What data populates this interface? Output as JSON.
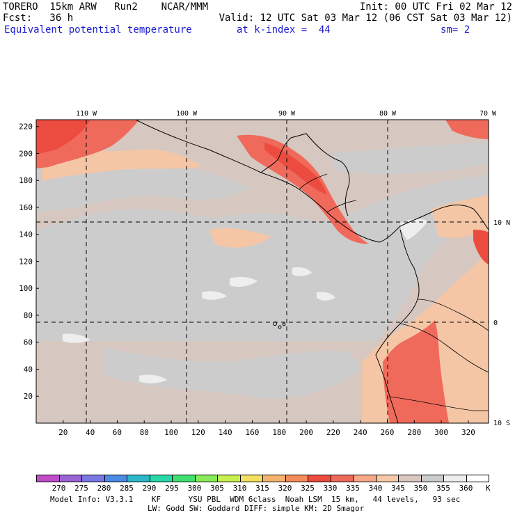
{
  "header": {
    "line1_left": "TORERO  15km ARW   Run2    NCAR/MMM",
    "line1_right": "Init: 00 UTC Fri 02 Mar 12",
    "line2_left": "Fcst:   36 h",
    "line2_right": "Valid: 12 UTC Sat 03 Mar 12 (06 CST Sat 03 Mar 12)",
    "field_name": "Equivalent potential temperature",
    "level": "at k-index =  44",
    "smoothing": "sm= 2"
  },
  "map": {
    "lon_labels": [
      "110 W",
      "100 W",
      "90 W",
      "80 W",
      "70 W"
    ],
    "lat_labels": [
      "10 N",
      "0",
      "10 S"
    ],
    "y_ticks": [
      "220",
      "200",
      "180",
      "160",
      "140",
      "120",
      "100",
      "80",
      "60",
      "40",
      "20"
    ],
    "x_ticks": [
      "20",
      "40",
      "60",
      "80",
      "100",
      "120",
      "140",
      "160",
      "180",
      "200",
      "220",
      "240",
      "260",
      "280",
      "300",
      "320"
    ],
    "grid_x_range": [
      0,
      335
    ],
    "grid_y_range": [
      0,
      225
    ]
  },
  "colorbar": {
    "unit": "K",
    "labels": [
      "270",
      "275",
      "280",
      "285",
      "290",
      "295",
      "300",
      "305",
      "310",
      "315",
      "320",
      "325",
      "330",
      "335",
      "340",
      "345",
      "350",
      "355",
      "360"
    ],
    "colors": [
      "#c04cc8",
      "#9a64d4",
      "#7a78e4",
      "#4a8ce4",
      "#2cb8c8",
      "#28d8a8",
      "#40e070",
      "#88ec58",
      "#c8f050",
      "#f4e060",
      "#f4b470",
      "#f48c5c",
      "#ec4c40",
      "#f06a5c",
      "#f8a888",
      "#f6c8a8",
      "#d8c8c0",
      "#cccccc",
      "#eeeeee",
      "#ffffff"
    ]
  },
  "footer": {
    "line1": "Model Info: V3.3.1    KF      YSU PBL  WDM 6class  Noah LSM  15 km,   44 levels,   93 sec",
    "line2": "LW: Godd SW: Goddard DIFF: simple KM: 2D Smagor"
  }
}
